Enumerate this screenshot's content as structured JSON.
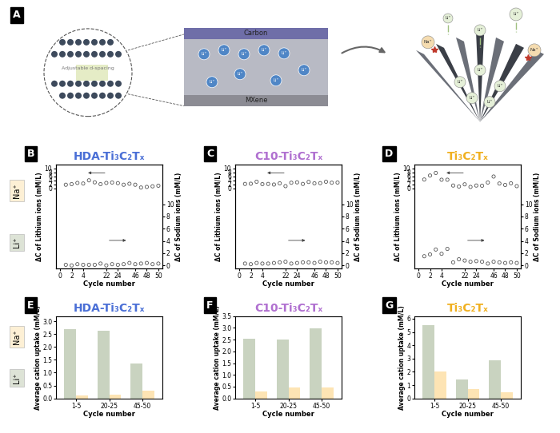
{
  "diagram": {
    "label": "A",
    "layers": [
      "Carbon",
      "MXene"
    ],
    "spacing_label": "Adjustable d-spacing",
    "ions": [
      "Li⁺",
      "Na⁺"
    ]
  },
  "row_labels": [
    "Na⁺",
    "Li⁺"
  ],
  "chart_data": [
    {
      "label": "B",
      "type": "scatter",
      "title": "HDA-Ti₃C₂Tₓ",
      "color": "#4a6fd6",
      "x_label": "Cycle number",
      "y_label": "ΔC of Lithium ions (mM/L)",
      "y2_label": "ΔC of Sodium ions (mM/L)",
      "categories": [
        "0",
        null,
        "2",
        null,
        "4",
        null,
        null,
        null,
        "22",
        null,
        "24",
        null,
        null,
        "46",
        null,
        "48",
        null,
        "50"
      ],
      "ylim": [
        -40,
        12
      ],
      "yticks": [
        0,
        2,
        4,
        6,
        8,
        10
      ],
      "y2lim": [
        -0.5,
        16.5
      ],
      "y2ticks": [
        0,
        2,
        4,
        6,
        8,
        10
      ],
      "series": [
        {
          "color": "#555555",
          "marker": "o",
          "values": [
            null,
            1.9,
            2.2,
            2.8,
            2.5,
            4.1,
            3.1,
            2.2,
            2.8,
            3.0,
            2.7,
            1.9,
            2.4,
            1.9,
            0.5,
            0.8,
            1.1,
            1.4
          ]
        },
        {
          "color": "#555555",
          "marker": "o",
          "axis": "y2",
          "values": [
            null,
            0.1,
            0.0,
            0.2,
            0.1,
            0.1,
            0.1,
            0.3,
            0.0,
            0.2,
            0.1,
            0.2,
            0.4,
            0.2,
            0.3,
            0.4,
            0.2,
            0.3
          ]
        }
      ]
    },
    {
      "label": "C",
      "type": "scatter",
      "title": "C10-Ti₃C₂Tₓ",
      "color": "#b070d0",
      "x_label": "Cycle number",
      "y_label": "ΔC of Lithium ions (mM/L)",
      "y2_label": "ΔC of Sodium ions (mM/L)",
      "categories": [
        "0",
        null,
        "2",
        null,
        "4",
        null,
        null,
        null,
        "22",
        null,
        "24",
        null,
        null,
        "46",
        null,
        "48",
        null,
        "50"
      ],
      "ylim": [
        -40,
        12
      ],
      "yticks": [
        0,
        2,
        4,
        6,
        8,
        10
      ],
      "y2lim": [
        -0.5,
        16.5
      ],
      "y2ticks": [
        0,
        2,
        4,
        6,
        8,
        10
      ],
      "series": [
        {
          "color": "#555555",
          "marker": "o",
          "values": [
            null,
            2.3,
            2.4,
            3.4,
            2.2,
            2.3,
            2.0,
            2.6,
            1.2,
            2.9,
            3.1,
            2.3,
            3.3,
            2.6,
            2.7,
            3.4,
            2.9,
            3.0
          ]
        },
        {
          "color": "#555555",
          "marker": "o",
          "axis": "y2",
          "values": [
            null,
            0.3,
            0.2,
            0.4,
            0.3,
            0.3,
            0.4,
            0.5,
            0.6,
            0.3,
            0.4,
            0.5,
            0.5,
            0.4,
            0.6,
            0.5,
            0.5,
            0.4
          ]
        }
      ]
    },
    {
      "label": "D",
      "type": "scatter",
      "title": "Ti₃C₂Tₓ",
      "color": "#f0b020",
      "x_label": "Cycle number",
      "y_label": "ΔC of Lithium ions (mM/L)",
      "y2_label": "ΔC of Sodium ions (mM/L)",
      "categories": [
        "0",
        null,
        "2",
        null,
        "4",
        null,
        null,
        null,
        "22",
        null,
        "24",
        null,
        null,
        "46",
        null,
        "48",
        null,
        "50"
      ],
      "ylim": [
        -40,
        12
      ],
      "yticks": [
        0,
        2,
        4,
        6,
        8,
        10
      ],
      "y2lim": [
        -0.5,
        16.5
      ],
      "y2ticks": [
        0,
        2,
        4,
        6,
        8,
        10
      ],
      "series": [
        {
          "color": "#555555",
          "marker": "o",
          "values": [
            null,
            4.5,
            6.5,
            7.8,
            4.4,
            4.4,
            1.5,
            1.0,
            2.1,
            0.8,
            1.5,
            1.4,
            3.0,
            6.0,
            2.5,
            1.8,
            2.6,
            1.2
          ]
        },
        {
          "color": "#555555",
          "marker": "o",
          "axis": "y2",
          "values": [
            null,
            1.5,
            1.8,
            2.6,
            1.9,
            2.7,
            0.5,
            1.0,
            0.8,
            0.6,
            0.7,
            0.6,
            0.3,
            0.6,
            0.5,
            0.4,
            0.5,
            0.4
          ]
        }
      ]
    },
    {
      "label": "E",
      "type": "bar",
      "title": "HDA-Ti₃C₂Tₓ",
      "color": "#4a6fd6",
      "x_label": "Cycle number",
      "y_label": "Average cation uptake (mM/L)",
      "categories": [
        "1-5",
        "20-25",
        "45-50"
      ],
      "ylim": [
        0,
        3.2
      ],
      "yticks": [
        {
          "value": 0,
          "label": "0.0"
        },
        {
          "value": 0.5,
          "label": "0.5"
        },
        {
          "value": 1,
          "label": "1.0"
        },
        {
          "value": 1.5,
          "label": "1.5"
        },
        {
          "value": 2,
          "label": "2.0"
        },
        {
          "value": 2.5,
          "label": "2.5"
        },
        {
          "value": 3,
          "label": "3.0"
        }
      ],
      "series": [
        {
          "color": "#c9d3c0",
          "values": [
            2.7,
            2.62,
            1.35
          ]
        },
        {
          "color": "#fde4b4",
          "values": [
            0.1,
            0.15,
            0.3
          ]
        }
      ]
    },
    {
      "label": "F",
      "type": "bar",
      "title": "C10-Ti₃C₂Tₓ",
      "color": "#b070d0",
      "x_label": "Cycle number",
      "y_label": "Average cation uptake (mM/L)",
      "categories": [
        "1-5",
        "20-25",
        "45-50"
      ],
      "ylim": [
        0,
        3.5
      ],
      "yticks": [
        {
          "value": 0,
          "label": "0.0"
        },
        {
          "value": 0.5,
          "label": "0.5"
        },
        {
          "value": 1,
          "label": "1.0"
        },
        {
          "value": 1.5,
          "label": "1.5"
        },
        {
          "value": 2,
          "label": "2.0"
        },
        {
          "value": 2.5,
          "label": "2.5"
        },
        {
          "value": 3,
          "label": "3.0"
        },
        {
          "value": 3.5,
          "label": "3.5"
        }
      ],
      "series": [
        {
          "color": "#c9d3c0",
          "values": [
            2.52,
            2.5,
            2.98
          ]
        },
        {
          "color": "#fde4b4",
          "values": [
            0.3,
            0.45,
            0.48
          ]
        }
      ]
    },
    {
      "label": "G",
      "type": "bar",
      "title": "Ti₃C₂Tₓ",
      "color": "#f0b020",
      "x_label": "Cycle number",
      "y_label": "Average cation uptake (mM/L)",
      "categories": [
        "1-5",
        "20-25",
        "45-50"
      ],
      "ylim": [
        0,
        6.2
      ],
      "yticks": [
        0,
        1,
        2,
        3,
        4,
        5,
        6
      ],
      "series": [
        {
          "color": "#c9d3c0",
          "values": [
            5.5,
            1.4,
            2.85
          ]
        },
        {
          "color": "#fde4b4",
          "values": [
            2.05,
            0.7,
            0.45
          ]
        }
      ]
    }
  ]
}
